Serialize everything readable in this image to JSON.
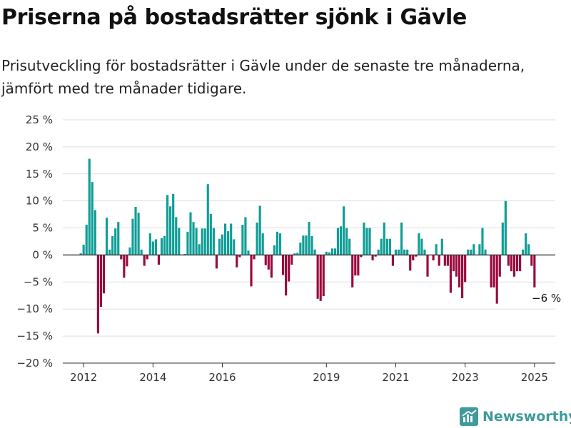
{
  "title": "Priserna på bostadsrätter sjönk i Gävle",
  "subtitle": "Prisutveckling för bostadsrätter i Gävle under de senaste tre månaderna, jämfört med tre månader tidigare.",
  "brand": {
    "name": "Newsworthy",
    "icon": "newsworthy-logo-icon",
    "color": "#3e9a9b"
  },
  "colors": {
    "positive": "#0f9e97",
    "negative": "#9a0a3e",
    "grid": "#dddddd",
    "zero_line": "#333333"
  },
  "chart_data": {
    "type": "bar",
    "title": "Priserna på bostadsrätter sjönk i Gävle",
    "subtitle": "Prisutveckling för bostadsrätter i Gävle under de senaste tre månaderna, jämfört med tre månader tidigare.",
    "xlabel": "",
    "ylabel": "",
    "ylim": [
      -20,
      25
    ],
    "yticks": [
      25,
      20,
      15,
      10,
      5,
      0,
      -5,
      -10,
      -15,
      -20
    ],
    "ytick_labels": [
      "25 %",
      "20 %",
      "15 %",
      "10 %",
      "5 %",
      "0 %",
      "−5 %",
      "−10 %",
      "−15 %",
      "−20 %"
    ],
    "xticks": [
      2012,
      2014,
      2016,
      2019,
      2021,
      2023,
      2025
    ],
    "xtick_labels": [
      "2012",
      "2014",
      "2016",
      "2019",
      "2021",
      "2023",
      "2025"
    ],
    "xlim": [
      2011.4,
      2025.6
    ],
    "grid": true,
    "start": "2011-12",
    "frequency": "monthly",
    "values": [
      0.3,
      1.9,
      5.6,
      17.8,
      13.5,
      8.3,
      -14.5,
      -9.6,
      -7.1,
      6.9,
      1.0,
      3.5,
      4.9,
      6.1,
      -0.8,
      -4.2,
      -2.1,
      1.4,
      6.7,
      8.9,
      7.8,
      1.0,
      -2.0,
      -0.8,
      4.0,
      2.5,
      2.9,
      -1.8,
      3.1,
      3.5,
      11.1,
      9.0,
      11.3,
      7.0,
      5.0,
      0.0,
      0.2,
      4.3,
      7.9,
      6.1,
      5.0,
      2.0,
      4.9,
      4.9,
      13.1,
      7.6,
      5.0,
      -2.5,
      3.0,
      3.8,
      5.8,
      4.4,
      5.8,
      2.9,
      -2.3,
      -0.4,
      5.6,
      7.0,
      0.8,
      -5.8,
      -0.8,
      6.0,
      9.1,
      4.0,
      -1.9,
      -2.7,
      -4.2,
      1.8,
      4.3,
      4.0,
      -3.7,
      -7.5,
      -4.9,
      -1.8,
      0.3,
      0.4,
      2.3,
      3.6,
      3.6,
      6.1,
      3.5,
      1.0,
      -8.1,
      -8.5,
      -7.6,
      0.6,
      0.5,
      1.2,
      1.2,
      5.0,
      5.3,
      9.0,
      5.0,
      3.0,
      -6.0,
      -3.8,
      -3.8,
      -0.4,
      6.0,
      5.0,
      5.0,
      -1.0,
      -0.3,
      1.0,
      3.0,
      6.0,
      3.0,
      3.0,
      -2.0,
      1.0,
      1.0,
      6.0,
      1.0,
      1.0,
      -2.9,
      -1.0,
      -0.3,
      4.0,
      3.0,
      1.0,
      -4.0,
      0.0,
      -1.0,
      2.0,
      -2.0,
      3.0,
      -2.0,
      -2.0,
      -7.0,
      -3.0,
      -4.0,
      -6.0,
      -8.0,
      -5.0,
      1.0,
      1.0,
      2.0,
      0.0,
      2.0,
      5.0,
      1.0,
      0.0,
      -6.0,
      -6.0,
      -9.0,
      -4.0,
      6.0,
      10.0,
      -2.0,
      -3.0,
      -4.0,
      -3.0,
      -3.0,
      1.0,
      4.0,
      2.0,
      -2.0,
      -6.0
    ],
    "annotations": [
      {
        "x": "2025-05",
        "value": -6,
        "text": "−6 %"
      }
    ]
  }
}
